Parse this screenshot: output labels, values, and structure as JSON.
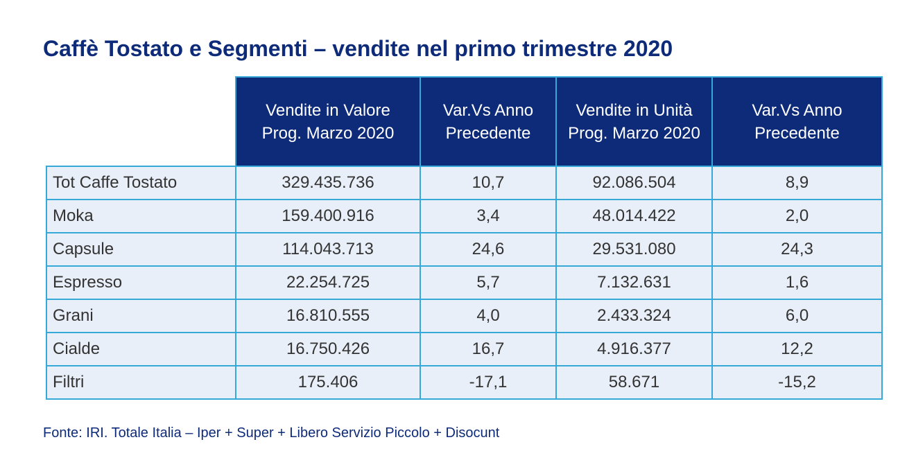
{
  "title": "Caffè Tostato e Segmenti – vendite nel primo trimestre 2020",
  "table": {
    "headers": [
      [
        "Vendite in Valore",
        "Prog. Marzo 2020"
      ],
      [
        "Var.Vs Anno",
        "Precedente"
      ],
      [
        "Vendite in Unità",
        "Prog. Marzo 2020"
      ],
      [
        "Var.Vs Anno",
        "Precedente"
      ]
    ],
    "rows": [
      [
        "Tot Caffe Tostato",
        "329.435.736",
        "10,7",
        "92.086.504",
        "8,9"
      ],
      [
        "Moka",
        "159.400.916",
        "3,4",
        "48.014.422",
        "2,0"
      ],
      [
        "Capsule",
        "114.043.713",
        "24,6",
        "29.531.080",
        "24,3"
      ],
      [
        "Espresso",
        "22.254.725",
        "5,7",
        "7.132.631",
        "1,6"
      ],
      [
        "Grani",
        "16.810.555",
        "4,0",
        "2.433.324",
        "6,0"
      ],
      [
        "Cialde",
        "16.750.426",
        "16,7",
        "4.916.377",
        "12,2"
      ],
      [
        "Filtri",
        "175.406",
        "-17,1",
        "58.671",
        "-15,2"
      ]
    ]
  },
  "source": "Fonte: IRI. Totale Italia – Iper + Super + Libero Servizio Piccolo + Disocunt",
  "colors": {
    "title": "#0d2b78",
    "header_bg": "#0d2b78",
    "header_text": "#ffffff",
    "border": "#36a9d9",
    "row_bg": "#e9eff8",
    "cell_text": "#333333"
  }
}
